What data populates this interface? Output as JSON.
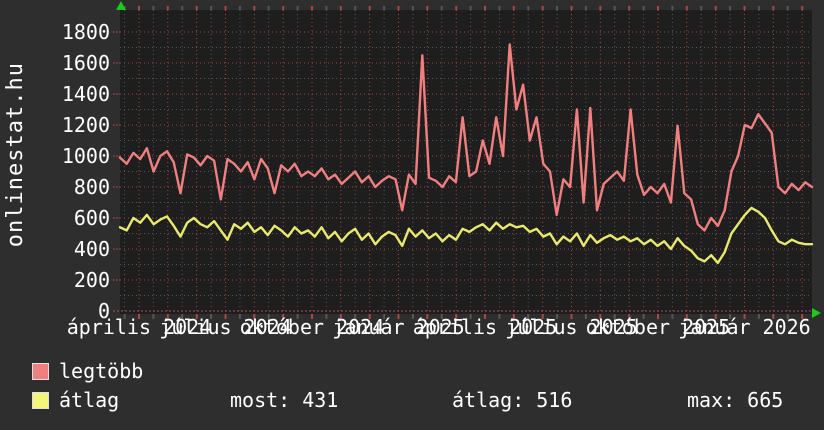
{
  "watermark": {
    "text": "onlinestat.hu"
  },
  "legend": {
    "items": [
      {
        "label": "legtöbb",
        "color": "#f08080"
      },
      {
        "label": "átlag",
        "color": "#f5f57a"
      }
    ]
  },
  "stats": {
    "items": [
      {
        "label": "most:",
        "value": "431"
      },
      {
        "label": "átlag:",
        "value": "516"
      },
      {
        "label": "max:",
        "value": "665"
      }
    ]
  },
  "colors": {
    "background": "#2e2e2e",
    "plot_background": "#1e1e1e",
    "grid_major_red": "#a84848",
    "grid_minor_gray": "#565656",
    "baseline_red": "#b05050",
    "text": "#ffffff",
    "axis_arrow_green": "#1ac91a",
    "series_legtobb": "#f08080",
    "series_atlag": "#e9e96e"
  },
  "chart_data": {
    "type": "line",
    "title": "",
    "xlabel": "",
    "ylabel": "",
    "ylim": [
      0,
      1800
    ],
    "ytick_interval": 200,
    "yticks": [
      "1800",
      "1600",
      "1400",
      "1200",
      "1000",
      "800",
      "600",
      "400",
      "200",
      "0"
    ],
    "xticks": [
      "április 2024",
      "július 2024",
      "október 2024",
      "január 2025",
      "április 2025",
      "július 2025",
      "október 2025",
      "január 2026"
    ],
    "grid": true,
    "legend_position": "bottom-left",
    "series": [
      {
        "name": "legtöbb",
        "color": "#f08080",
        "values": [
          990,
          950,
          1020,
          980,
          1050,
          900,
          1000,
          1030,
          960,
          760,
          1010,
          990,
          940,
          1000,
          970,
          720,
          980,
          950,
          900,
          960,
          850,
          980,
          920,
          760,
          940,
          900,
          950,
          870,
          900,
          870,
          920,
          850,
          880,
          820,
          860,
          900,
          830,
          870,
          800,
          840,
          870,
          850,
          650,
          880,
          820,
          1650,
          860,
          840,
          800,
          870,
          830,
          1250,
          870,
          900,
          1100,
          950,
          1250,
          1000,
          1720,
          1300,
          1460,
          1100,
          1250,
          950,
          900,
          620,
          850,
          800,
          1300,
          700,
          1310,
          650,
          820,
          860,
          900,
          840,
          1300,
          880,
          750,
          800,
          760,
          820,
          700,
          1195,
          760,
          720,
          560,
          520,
          600,
          550,
          650,
          900,
          1000,
          1200,
          1180,
          1270,
          1210,
          1150,
          800,
          760,
          820,
          780,
          830,
          800
        ]
      },
      {
        "name": "átlag",
        "color": "#e9e96e",
        "values": [
          540,
          520,
          600,
          570,
          620,
          560,
          590,
          610,
          550,
          480,
          570,
          600,
          560,
          540,
          580,
          520,
          460,
          560,
          530,
          570,
          510,
          540,
          490,
          550,
          520,
          480,
          540,
          500,
          520,
          480,
          540,
          470,
          510,
          450,
          500,
          530,
          460,
          500,
          430,
          480,
          510,
          490,
          420,
          530,
          480,
          520,
          470,
          500,
          450,
          490,
          460,
          530,
          510,
          540,
          560,
          520,
          570,
          530,
          560,
          540,
          550,
          510,
          530,
          480,
          500,
          430,
          480,
          450,
          500,
          420,
          490,
          440,
          470,
          490,
          460,
          480,
          450,
          470,
          430,
          460,
          420,
          450,
          400,
          470,
          420,
          390,
          340,
          320,
          360,
          310,
          380,
          500,
          560,
          620,
          665,
          640,
          600,
          520,
          450,
          430,
          460,
          440,
          431,
          431
        ]
      }
    ]
  }
}
